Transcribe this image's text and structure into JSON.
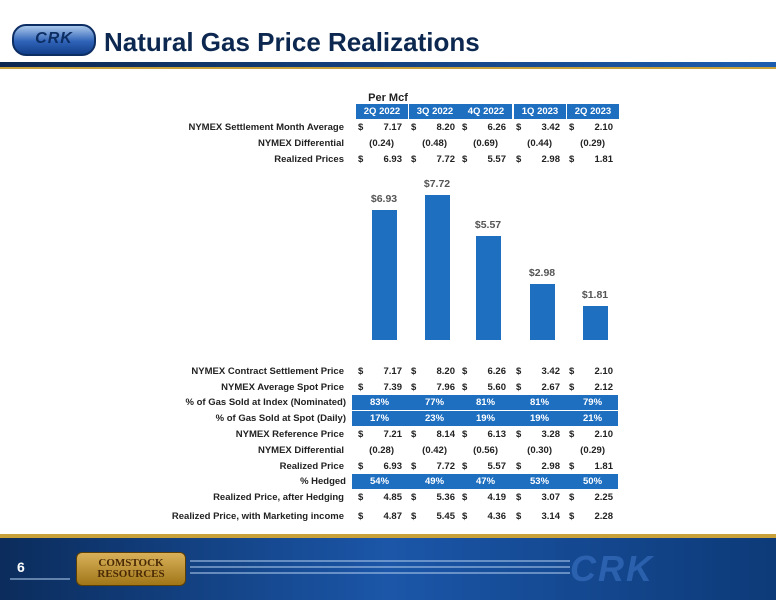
{
  "header": {
    "title": "Natural Gas Price Realizations",
    "logo_text": "CRK"
  },
  "unit_label": "Per Mcf",
  "quarters": [
    "2Q 2022",
    "3Q 2022",
    "4Q 2022",
    "1Q 2023",
    "2Q 2023"
  ],
  "top_table": [
    {
      "label": "NYMEX Settlement Month Average",
      "dollar": true,
      "values": [
        "7.17",
        "8.20",
        "6.26",
        "3.42",
        "2.10"
      ]
    },
    {
      "label": "NYMEX Differential",
      "dollar": false,
      "values": [
        "(0.24)",
        "(0.48)",
        "(0.69)",
        "(0.44)",
        "(0.29)"
      ]
    },
    {
      "label": "Realized Prices",
      "dollar": true,
      "values": [
        "6.93",
        "7.72",
        "5.57",
        "2.98",
        "1.81"
      ]
    }
  ],
  "chart_data": {
    "type": "bar",
    "categories": [
      "2Q 2022",
      "3Q 2022",
      "4Q 2022",
      "1Q 2023",
      "2Q 2023"
    ],
    "values": [
      6.93,
      7.72,
      5.57,
      2.98,
      1.81
    ],
    "data_labels": [
      "$6.93",
      "$7.72",
      "$5.57",
      "$2.98",
      "$1.81"
    ],
    "title": "",
    "xlabel": "",
    "ylabel": "",
    "ylim": [
      0,
      8
    ],
    "colors": {
      "bar": "#1f6fc1"
    }
  },
  "bottom_table": [
    {
      "label": "NYMEX Contract Settlement Price",
      "type": "dollar",
      "values": [
        "7.17",
        "8.20",
        "6.26",
        "3.42",
        "2.10"
      ]
    },
    {
      "label": "NYMEX Average Spot Price",
      "type": "dollar",
      "values": [
        "7.39",
        "7.96",
        "5.60",
        "2.67",
        "2.12"
      ]
    },
    {
      "label": "% of Gas Sold at Index (Nominated)",
      "type": "pct",
      "values": [
        "83%",
        "77%",
        "81%",
        "81%",
        "79%"
      ]
    },
    {
      "label": "% of Gas Sold at Spot (Daily)",
      "type": "pct",
      "values": [
        "17%",
        "23%",
        "19%",
        "19%",
        "21%"
      ]
    },
    {
      "label": "NYMEX Reference Price",
      "type": "dollar",
      "values": [
        "7.21",
        "8.14",
        "6.13",
        "3.28",
        "2.10"
      ]
    },
    {
      "label": "NYMEX Differential",
      "type": "plain",
      "values": [
        "(0.28)",
        "(0.42)",
        "(0.56)",
        "(0.30)",
        "(0.29)"
      ]
    },
    {
      "label": "Realized Price",
      "type": "dollar",
      "values": [
        "6.93",
        "7.72",
        "5.57",
        "2.98",
        "1.81"
      ]
    },
    {
      "label": "% Hedged",
      "type": "pct",
      "values": [
        "54%",
        "49%",
        "47%",
        "53%",
        "50%"
      ]
    },
    {
      "label": "Realized Price, after Hedging",
      "type": "dollar",
      "values": [
        "4.85",
        "5.36",
        "4.19",
        "3.07",
        "2.25"
      ]
    },
    {
      "label": "Realized Price, with Marketing income",
      "type": "dollar",
      "values": [
        "4.87",
        "5.45",
        "4.36",
        "3.14",
        "2.28"
      ]
    }
  ],
  "currency_symbol": "$",
  "footer": {
    "page_number": "6",
    "company_logo": "COMSTOCK RESOURCES",
    "right_logo": "CRK"
  },
  "colors": {
    "accent": "#1f6fc1",
    "navy": "#0d2850",
    "gold": "#c9a13b"
  }
}
